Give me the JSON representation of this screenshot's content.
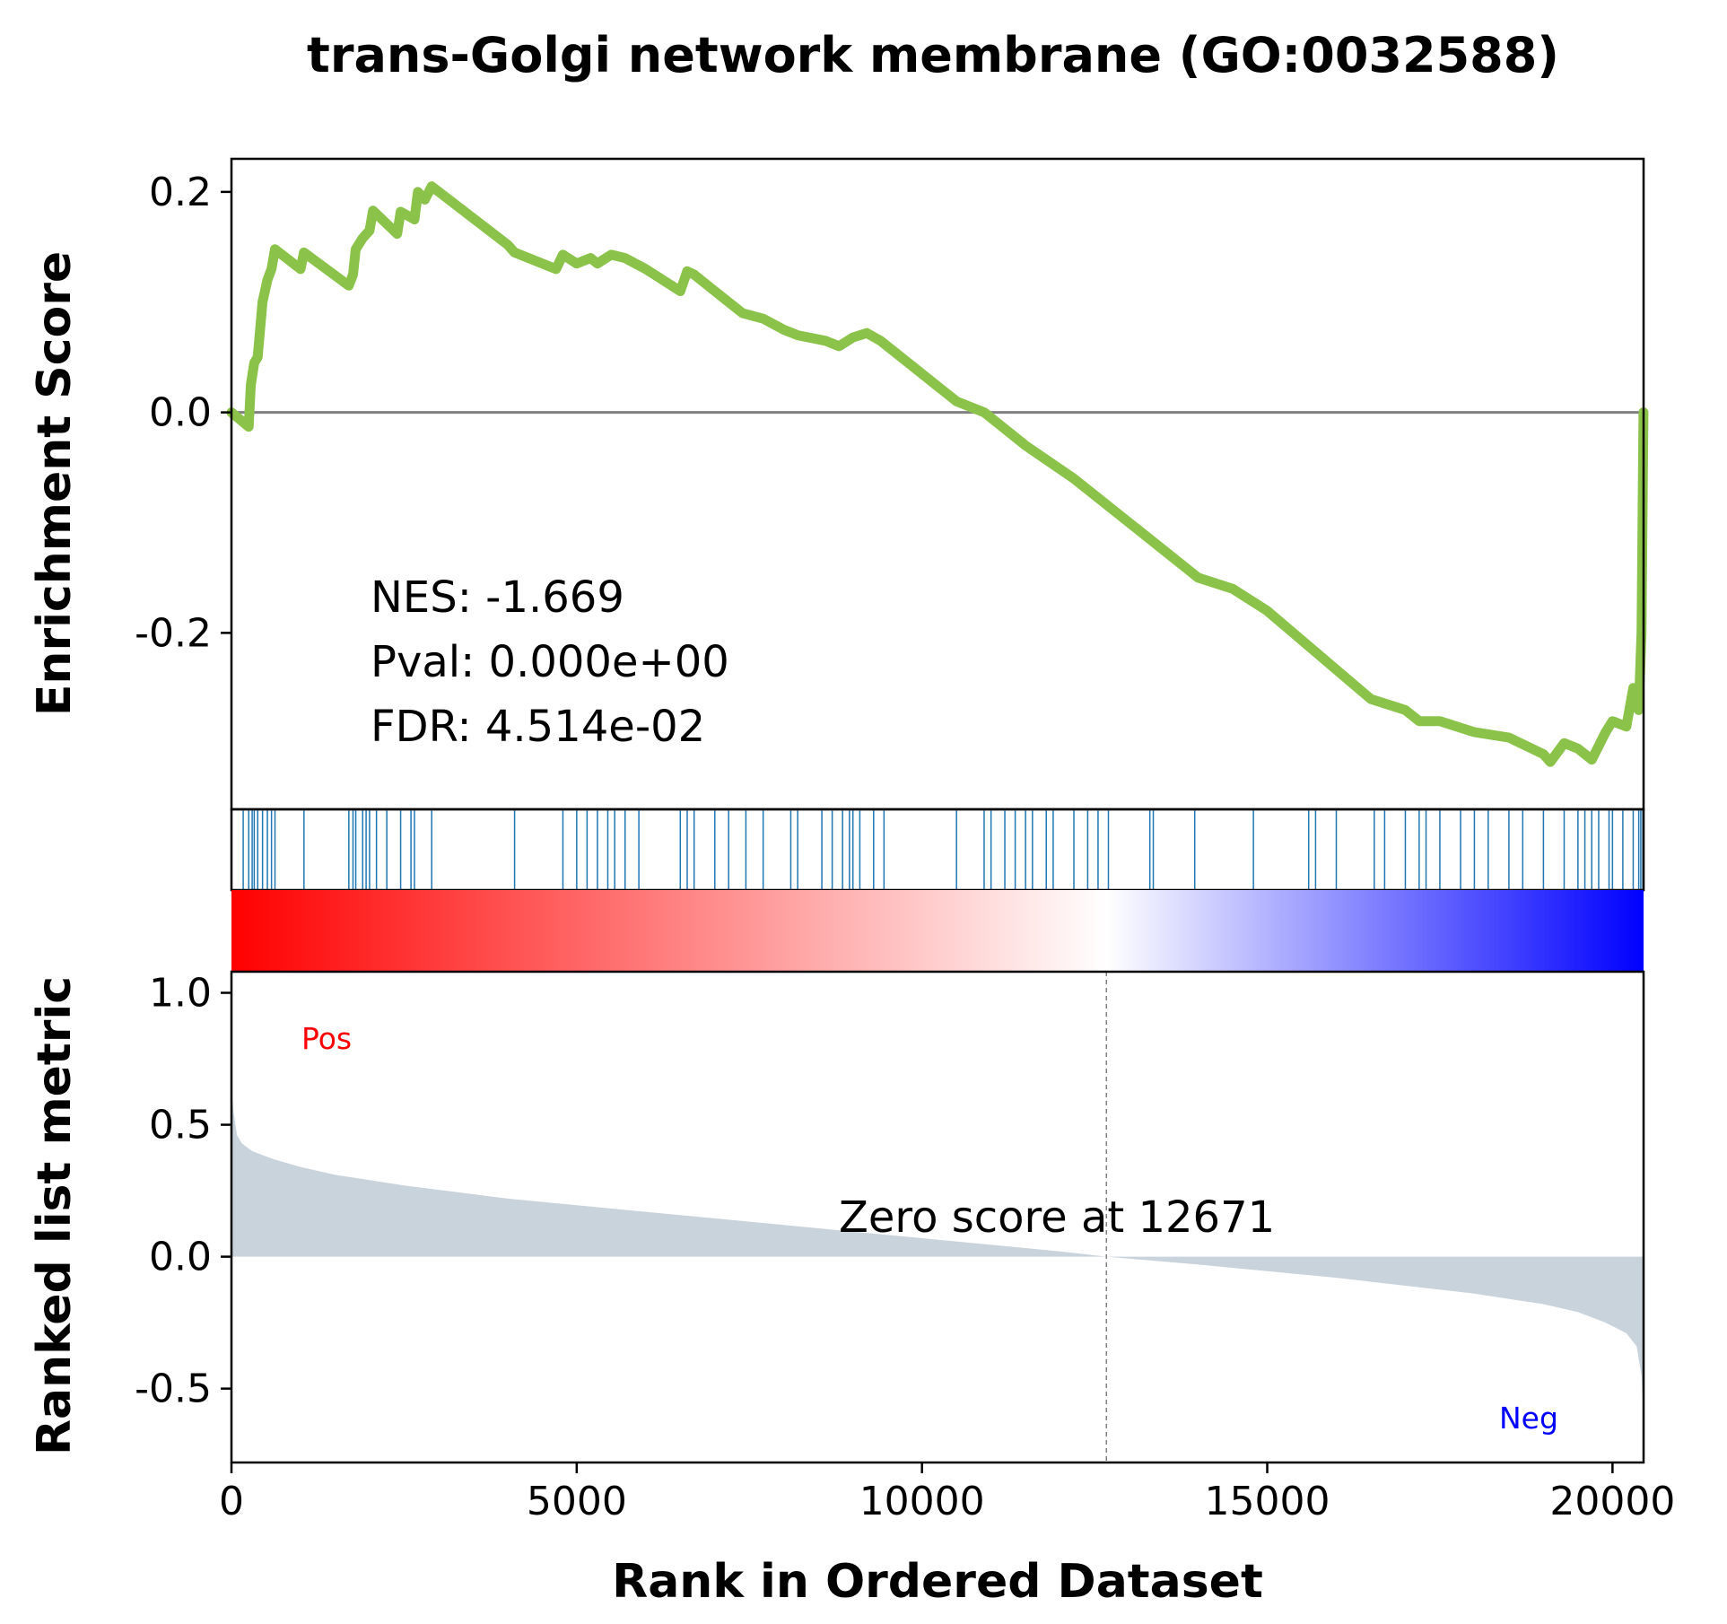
{
  "chart_data": {
    "type": "line",
    "title": "trans-Golgi network membrane (GO:0032588)",
    "xlabel": "Rank in Ordered Dataset",
    "xlim": [
      0,
      20450
    ],
    "x_ticks": [
      "0",
      "5000",
      "10000",
      "15000",
      "20000"
    ],
    "es_panel": {
      "ylabel": "Enrichment Score",
      "ylim": [
        -0.36,
        0.23
      ],
      "y_ticks": [
        "0.2",
        "0.0",
        "-0.2"
      ],
      "line_color": "#8bc34a",
      "es_curve": {
        "x": [
          0,
          250,
          280,
          330,
          380,
          450,
          520,
          580,
          630,
          1000,
          1050,
          1700,
          1760,
          1800,
          1900,
          2000,
          2050,
          2400,
          2450,
          2650,
          2700,
          2800,
          2900,
          4000,
          4100,
          4700,
          4800,
          5000,
          5200,
          5300,
          5500,
          5700,
          6000,
          6500,
          6600,
          6700,
          7000,
          7400,
          7700,
          8000,
          8200,
          8600,
          8800,
          9000,
          9200,
          9400,
          10500,
          10900,
          11500,
          12200,
          13000,
          14000,
          14500,
          15000,
          16500,
          17000,
          17200,
          17500,
          18000,
          18500,
          19000,
          19100,
          19300,
          19500,
          19700,
          19900,
          20000,
          20200,
          20300,
          20380,
          20420,
          20449
        ],
        "y": [
          0.0,
          -0.013,
          0.025,
          0.045,
          0.05,
          0.1,
          0.12,
          0.13,
          0.148,
          0.13,
          0.145,
          0.115,
          0.125,
          0.148,
          0.158,
          0.165,
          0.183,
          0.162,
          0.182,
          0.175,
          0.2,
          0.193,
          0.205,
          0.152,
          0.145,
          0.13,
          0.143,
          0.135,
          0.14,
          0.135,
          0.143,
          0.14,
          0.13,
          0.11,
          0.128,
          0.125,
          0.11,
          0.09,
          0.085,
          0.075,
          0.07,
          0.065,
          0.06,
          0.068,
          0.072,
          0.065,
          0.01,
          0.0,
          -0.03,
          -0.06,
          -0.1,
          -0.15,
          -0.16,
          -0.18,
          -0.26,
          -0.27,
          -0.28,
          -0.28,
          -0.29,
          -0.295,
          -0.31,
          -0.317,
          -0.3,
          -0.305,
          -0.315,
          -0.29,
          -0.28,
          -0.285,
          -0.25,
          -0.27,
          -0.2,
          0.0
        ]
      },
      "stats": [
        "NES: -1.669",
        "Pval: 0.000e+00",
        "FDR: 4.514e-02"
      ]
    },
    "hits_panel": {
      "line_color": "#1f77b4",
      "gene_hits": [
        170,
        250,
        300,
        330,
        380,
        450,
        520,
        580,
        630,
        1050,
        1700,
        1760,
        1800,
        1900,
        1950,
        2000,
        2100,
        2250,
        2450,
        2600,
        2650,
        2900,
        4100,
        4800,
        5000,
        5150,
        5300,
        5450,
        5550,
        5700,
        5900,
        6500,
        6600,
        6700,
        7000,
        7200,
        7450,
        7700,
        8100,
        8200,
        8550,
        8700,
        8850,
        8950,
        9000,
        9100,
        9300,
        9450,
        10500,
        10900,
        11000,
        11200,
        11350,
        11500,
        11600,
        11800,
        11900,
        12200,
        12400,
        12550,
        12700,
        13300,
        13350,
        13950,
        14800,
        15600,
        15700,
        16000,
        16550,
        16700,
        17000,
        17200,
        17300,
        17500,
        17800,
        18000,
        18200,
        18500,
        18700,
        19000,
        19300,
        19500,
        19600,
        19700,
        19800,
        19950,
        20000,
        20150,
        20300,
        20380,
        20410,
        20440
      ]
    },
    "metric_panel": {
      "ylabel": "Ranked list metric",
      "ylim": [
        -0.78,
        1.08
      ],
      "y_ticks": [
        "1.0",
        "0.5",
        "0.0",
        "-0.5"
      ],
      "fill_color": "#c9d3dc",
      "zero_score_label": "Zero score at 12671",
      "zero_score_rank": 12671,
      "pos_label": "Pos",
      "neg_label": "Neg",
      "pos_color": "#ff0000",
      "neg_color": "#0000ff",
      "metric_curve": {
        "x": [
          0,
          30,
          80,
          150,
          300,
          600,
          1000,
          1500,
          2500,
          4000,
          6000,
          8000,
          10000,
          12000,
          12671,
          14000,
          16000,
          18000,
          19000,
          19500,
          19900,
          20200,
          20350,
          20420,
          20449
        ],
        "y": [
          0.65,
          0.55,
          0.46,
          0.43,
          0.4,
          0.37,
          0.34,
          0.31,
          0.27,
          0.22,
          0.17,
          0.12,
          0.07,
          0.02,
          0.0,
          -0.03,
          -0.08,
          -0.14,
          -0.18,
          -0.21,
          -0.25,
          -0.29,
          -0.34,
          -0.45,
          -0.6
        ]
      }
    },
    "gradient": [
      "#ff0000",
      "#ffffff",
      "#0000ff"
    ]
  }
}
